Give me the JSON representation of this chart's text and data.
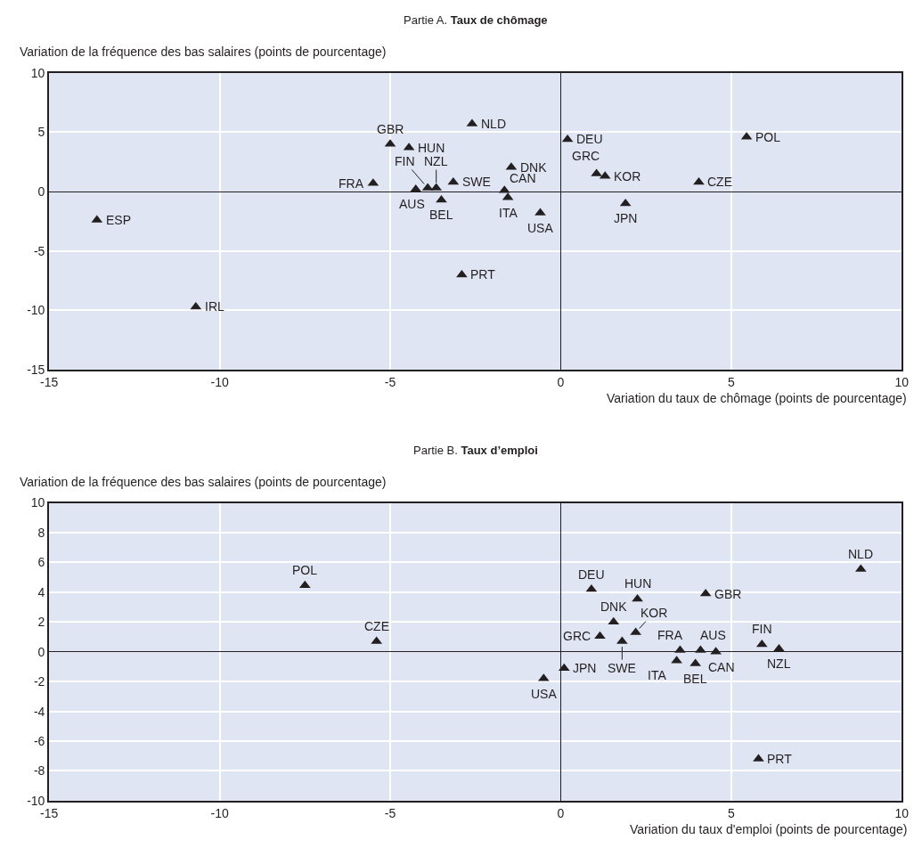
{
  "chart_data": [
    {
      "type": "scatter",
      "title": "Partie A. Taux de chômage",
      "ylabel": "Variation de la fréquence des bas salaires (points de pourcentage)",
      "xlabel": "Variation du taux de chômage (points de pourcentage)",
      "x": [
        -13.6,
        -10.7,
        -5.0,
        -4.45,
        -5.5,
        -4.25,
        -3.9,
        -3.65,
        -3.5,
        -3.15,
        -2.6,
        -1.45,
        -1.65,
        -1.55,
        -0.6,
        -2.9,
        0.2,
        1.05,
        1.3,
        1.9,
        4.05,
        5.45
      ],
      "series": [
        {
          "color": "#231f20",
          "values": [
            -2.4,
            -9.7,
            4.0,
            3.7,
            0.7,
            0.2,
            0.3,
            0.3,
            -0.7,
            0.8,
            5.7,
            2.05,
            0.1,
            -0.5,
            -1.8,
            -7.0,
            4.4,
            1.5,
            1.3,
            -1.0,
            0.8,
            4.6
          ]
        }
      ],
      "annotations": [
        {
          "text": "ESP",
          "x": -13.6,
          "y": -2.4
        },
        {
          "text": "IRL",
          "x": -10.7,
          "y": -9.7
        },
        {
          "text": "GBR",
          "x": -5.0,
          "y": 4.0
        },
        {
          "text": "HUN",
          "x": -4.45,
          "y": 3.7
        },
        {
          "text": "FRA",
          "x": -5.5,
          "y": 0.7
        },
        {
          "text": "AUS",
          "x": -4.25,
          "y": 0.2
        },
        {
          "text": "FIN",
          "x": -3.9,
          "y": 0.3
        },
        {
          "text": "NZL",
          "x": -3.65,
          "y": 0.3
        },
        {
          "text": "BEL",
          "x": -3.5,
          "y": -0.7
        },
        {
          "text": "SWE",
          "x": -3.15,
          "y": 0.8
        },
        {
          "text": "NLD",
          "x": -2.6,
          "y": 5.7
        },
        {
          "text": "DNK",
          "x": -1.45,
          "y": 2.05
        },
        {
          "text": "CAN",
          "x": -1.65,
          "y": 0.1
        },
        {
          "text": "ITA",
          "x": -1.55,
          "y": -0.5
        },
        {
          "text": "USA",
          "x": -0.6,
          "y": -1.8
        },
        {
          "text": "PRT",
          "x": -2.9,
          "y": -7.0
        },
        {
          "text": "DEU",
          "x": 0.2,
          "y": 4.4
        },
        {
          "text": "GRC",
          "x": 1.05,
          "y": 1.5
        },
        {
          "text": "KOR",
          "x": 1.3,
          "y": 1.3
        },
        {
          "text": "JPN",
          "x": 1.9,
          "y": -1.0
        },
        {
          "text": "CZE",
          "x": 4.05,
          "y": 0.8
        },
        {
          "text": "POL",
          "x": 5.45,
          "y": 4.6
        }
      ],
      "xlim": [
        -15,
        10
      ],
      "xticks": [
        -15,
        -10,
        -5,
        0,
        5,
        10
      ],
      "ylim": [
        -15,
        10
      ],
      "yticks": [
        -15,
        -10,
        -5,
        0,
        5,
        10
      ],
      "grid": true,
      "marker": "triangle"
    },
    {
      "type": "scatter",
      "title": "Partie B. Taux d’emploi",
      "ylabel": "Variation de la fréquence des bas salaires (points de pourcentage)",
      "xlabel": "Variation du taux d'emploi (points de pourcentage)",
      "x": [
        -7.5,
        -5.4,
        8.8,
        0.9,
        2.25,
        4.25,
        1.55,
        2.2,
        1.15,
        1.8,
        3.5,
        4.1,
        4.55,
        3.4,
        3.95,
        5.9,
        6.4,
        0.1,
        -0.5,
        5.8
      ],
      "series": [
        {
          "color": "#231f20",
          "values": [
            4.45,
            0.7,
            5.55,
            4.2,
            3.55,
            3.9,
            2.0,
            1.3,
            1.05,
            0.7,
            0.1,
            0.1,
            0.0,
            -0.6,
            -0.8,
            0.5,
            0.2,
            -1.1,
            -1.8,
            -7.2
          ]
        }
      ],
      "annotations": [
        {
          "text": "POL",
          "x": -7.5,
          "y": 4.45
        },
        {
          "text": "CZE",
          "x": -5.4,
          "y": 0.7
        },
        {
          "text": "NLD",
          "x": 8.8,
          "y": 5.55
        },
        {
          "text": "DEU",
          "x": 0.9,
          "y": 4.2
        },
        {
          "text": "HUN",
          "x": 2.25,
          "y": 3.55
        },
        {
          "text": "GBR",
          "x": 4.25,
          "y": 3.9
        },
        {
          "text": "DNK",
          "x": 1.55,
          "y": 2.0
        },
        {
          "text": "KOR",
          "x": 2.2,
          "y": 1.3
        },
        {
          "text": "GRC",
          "x": 1.15,
          "y": 1.05
        },
        {
          "text": "SWE",
          "x": 1.8,
          "y": 0.7
        },
        {
          "text": "FRA",
          "x": 3.5,
          "y": 0.1
        },
        {
          "text": "AUS",
          "x": 4.1,
          "y": 0.1
        },
        {
          "text": "CAN",
          "x": 4.55,
          "y": 0.0
        },
        {
          "text": "ITA",
          "x": 3.4,
          "y": -0.6
        },
        {
          "text": "BEL",
          "x": 3.95,
          "y": -0.8
        },
        {
          "text": "FIN",
          "x": 5.9,
          "y": 0.5
        },
        {
          "text": "NZL",
          "x": 6.4,
          "y": 0.2
        },
        {
          "text": "JPN",
          "x": 0.1,
          "y": -1.1
        },
        {
          "text": "USA",
          "x": -0.5,
          "y": -1.8
        },
        {
          "text": "PRT",
          "x": 5.8,
          "y": -7.2
        }
      ],
      "xlim": [
        -15,
        10
      ],
      "xticks": [
        -15,
        -10,
        -5,
        0,
        5,
        10
      ],
      "ylim": [
        -10,
        10
      ],
      "yticks": [
        -10,
        -8,
        -6,
        -4,
        -2,
        0,
        2,
        4,
        6,
        8,
        10
      ],
      "grid": true,
      "marker": "triangle"
    }
  ]
}
